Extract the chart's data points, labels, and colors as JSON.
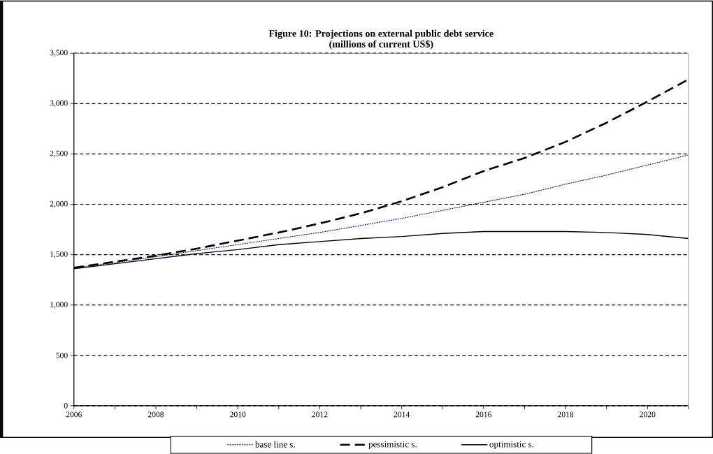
{
  "chart_data": {
    "type": "line",
    "title": "Figure 10: Projections on external public debt service\n(millions of current US$)",
    "x": [
      2006,
      2007,
      2008,
      2009,
      2010,
      2011,
      2012,
      2013,
      2014,
      2015,
      2016,
      2017,
      2018,
      2019,
      2020,
      2021
    ],
    "series": [
      {
        "name": "base line s.",
        "color": "#00008b",
        "line_style": "dotted",
        "values": [
          1370,
          1420,
          1480,
          1540,
          1600,
          1660,
          1720,
          1790,
          1860,
          1940,
          2020,
          2100,
          2200,
          2290,
          2390,
          2490
        ]
      },
      {
        "name": "pessimistic s.",
        "color": "#000000",
        "line_style": "dashed",
        "values": [
          1370,
          1430,
          1490,
          1560,
          1640,
          1720,
          1810,
          1910,
          2030,
          2170,
          2330,
          2460,
          2620,
          2810,
          3020,
          3240
        ]
      },
      {
        "name": "optimistic s.",
        "color": "#000000",
        "line_style": "solid",
        "values": [
          1360,
          1410,
          1460,
          1510,
          1550,
          1600,
          1630,
          1660,
          1680,
          1710,
          1730,
          1730,
          1730,
          1720,
          1700,
          1660
        ]
      }
    ],
    "xlim": [
      2006,
      2021
    ],
    "xticks": [
      2006,
      {
        "value": 2007,
        "label": null
      },
      2008,
      {
        "value": 2009,
        "label": null
      },
      2010,
      {
        "value": 2011,
        "label": null
      },
      2012,
      {
        "value": 2013,
        "label": null
      },
      2014,
      {
        "value": 2015,
        "label": null
      },
      2016,
      {
        "value": 2017,
        "label": null
      },
      2018,
      {
        "value": 2019,
        "label": null
      },
      2020,
      {
        "value": 2021,
        "label": null
      }
    ],
    "ylim": [
      0,
      3500
    ],
    "yticks": [
      {
        "value": 0,
        "label": "0"
      },
      {
        "value": 500,
        "label": "500"
      },
      {
        "value": 1000,
        "label": "1,000"
      },
      {
        "value": 1500,
        "label": "1,500"
      },
      {
        "value": 2000,
        "label": "2,000"
      },
      {
        "value": 2500,
        "label": "2,500"
      },
      {
        "value": 3000,
        "label": "3,000"
      },
      {
        "value": 3500,
        "label": "3,500"
      }
    ],
    "grid": "y",
    "legend": "bottom",
    "marker": "none"
  }
}
